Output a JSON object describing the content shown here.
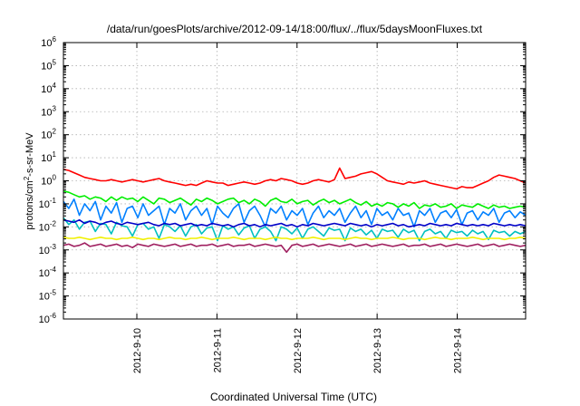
{
  "chart_data": {
    "type": "line",
    "title": "/data/run/goesPlots/archive/2012-09-14/18:00/flux/../flux/5daysMoonFluxes.txt",
    "xlabel": "Coordinated Universal Time (UTC)",
    "ylabel_parts": [
      "protons/cm",
      "2",
      "-s-sr-MeV"
    ],
    "y_scale": "log",
    "ylim_exp": [
      -6,
      6
    ],
    "y_tick_exponents": [
      -6,
      -5,
      -4,
      -3,
      -2,
      -1,
      0,
      1,
      2,
      3,
      4,
      5,
      6
    ],
    "y_tick_base": "10",
    "x_ticks": [
      "2012-9-10",
      "2012-9-11",
      "2012-9-12",
      "2012-9-13",
      "2012-9-14"
    ],
    "xlim": [
      "2012-09-09 02:00",
      "2012-09-14 20:30"
    ],
    "grid": true,
    "series": [
      {
        "color": "#ff0000",
        "log_values": [
          0.5,
          0.45,
          0.35,
          0.25,
          0.15,
          0.1,
          0.05,
          0.0,
          0.0,
          0.05,
          0.0,
          -0.05,
          0.0,
          0.05,
          0.0,
          -0.05,
          0.0,
          0.05,
          0.1,
          0.0,
          -0.05,
          -0.1,
          -0.15,
          -0.2,
          -0.15,
          -0.2,
          -0.1,
          0.0,
          -0.05,
          -0.1,
          -0.1,
          -0.2,
          -0.15,
          -0.1,
          -0.05,
          -0.1,
          -0.15,
          -0.1,
          0.0,
          0.05,
          0.0,
          0.1,
          0.05,
          0.0,
          -0.1,
          -0.15,
          -0.1,
          0.0,
          0.05,
          0.0,
          -0.05,
          0.05,
          0.55,
          0.1,
          0.15,
          0.2,
          0.3,
          0.35,
          0.4,
          0.3,
          0.15,
          0.0,
          -0.05,
          -0.1,
          -0.15,
          -0.05,
          -0.1,
          -0.05,
          0.0,
          -0.1,
          -0.15,
          -0.2,
          -0.25,
          -0.3,
          -0.35,
          -0.25,
          -0.3,
          -0.3,
          -0.2,
          -0.1,
          0.0,
          0.15,
          0.25,
          0.2,
          0.15,
          0.1,
          0.0,
          -0.1
        ]
      },
      {
        "color": "#00ee00",
        "log_values": [
          -0.45,
          -0.5,
          -0.6,
          -0.7,
          -0.65,
          -0.8,
          -0.7,
          -0.75,
          -0.9,
          -0.7,
          -0.85,
          -0.7,
          -0.8,
          -0.75,
          -0.9,
          -0.7,
          -0.85,
          -1.0,
          -0.75,
          -0.8,
          -0.95,
          -0.85,
          -0.75,
          -0.9,
          -1.05,
          -0.8,
          -0.9,
          -0.75,
          -0.85,
          -1.0,
          -0.9,
          -0.8,
          -0.75,
          -0.95,
          -0.85,
          -1.0,
          -0.8,
          -0.9,
          -1.1,
          -0.85,
          -0.75,
          -0.9,
          -0.95,
          -0.8,
          -1.0,
          -0.9,
          -0.85,
          -1.05,
          -0.9,
          -0.8,
          -0.95,
          -0.85,
          -1.0,
          -0.9,
          -0.8,
          -0.95,
          -1.05,
          -0.9,
          -1.1,
          -1.0,
          -1.1,
          -0.95,
          -1.0,
          -1.15,
          -1.0,
          -1.1,
          -0.95,
          -1.2,
          -1.05,
          -1.1,
          -1.0,
          -1.15,
          -1.1,
          -1.0,
          -1.2,
          -1.05,
          -1.1,
          -1.15,
          -1.0,
          -1.1,
          -1.2,
          -1.05,
          -1.15,
          -1.1,
          -1.2,
          -1.15,
          -1.1,
          -1.15
        ]
      },
      {
        "color": "#0080ff",
        "log_values": [
          -0.9,
          -1.2,
          -0.8,
          -1.5,
          -1.0,
          -1.3,
          -0.9,
          -1.7,
          -1.1,
          -1.4,
          -0.95,
          -1.8,
          -1.2,
          -1.1,
          -1.6,
          -1.0,
          -1.5,
          -1.3,
          -1.1,
          -1.9,
          -1.2,
          -1.4,
          -1.0,
          -1.7,
          -1.3,
          -1.1,
          -1.5,
          -1.2,
          -1.9,
          -1.1,
          -1.4,
          -1.6,
          -1.2,
          -1.0,
          -1.8,
          -1.3,
          -1.1,
          -1.5,
          -2.0,
          -1.2,
          -1.4,
          -1.1,
          -1.7,
          -1.3,
          -1.5,
          -1.2,
          -1.9,
          -1.4,
          -1.1,
          -1.6,
          -1.3,
          -1.5,
          -1.2,
          -1.8,
          -1.4,
          -1.1,
          -1.6,
          -1.3,
          -1.9,
          -1.2,
          -1.5,
          -1.35,
          -1.7,
          -1.2,
          -1.5,
          -1.4,
          -2.0,
          -1.3,
          -1.5,
          -1.2,
          -1.8,
          -1.4,
          -1.3,
          -1.6,
          -1.25,
          -1.9,
          -1.4,
          -1.3,
          -1.7,
          -1.35,
          -1.5,
          -1.2,
          -1.8,
          -1.4,
          -1.3,
          -1.6,
          -1.35,
          -1.5
        ]
      },
      {
        "color": "#00c0c0",
        "log_values": [
          -1.6,
          -1.9,
          -1.7,
          -2.1,
          -1.8,
          -1.75,
          -2.2,
          -1.85,
          -1.9,
          -2.3,
          -1.8,
          -1.95,
          -2.0,
          -2.4,
          -1.9,
          -1.85,
          -2.1,
          -2.0,
          -2.5,
          -1.9,
          -2.0,
          -2.2,
          -1.95,
          -2.4,
          -2.0,
          -1.9,
          -2.3,
          -2.05,
          -2.0,
          -2.6,
          -1.95,
          -2.1,
          -2.0,
          -2.35,
          -2.05,
          -1.95,
          -2.5,
          -2.1,
          -2.0,
          -2.2,
          -2.6,
          -2.0,
          -2.1,
          -2.3,
          -2.05,
          -2.5,
          -2.1,
          -2.0,
          -2.2,
          -2.4,
          -2.05,
          -2.15,
          -2.1,
          -2.6,
          -2.05,
          -2.2,
          -2.1,
          -2.35,
          -2.15,
          -2.5,
          -2.1,
          -2.2,
          -2.15,
          -2.45,
          -2.1,
          -2.25,
          -2.15,
          -2.6,
          -2.2,
          -2.1,
          -2.3,
          -2.2,
          -2.5,
          -2.15,
          -2.25,
          -2.2,
          -2.4,
          -2.15,
          -2.3,
          -2.2,
          -2.55,
          -2.15,
          -2.25,
          -2.2,
          -2.4,
          -2.2,
          -2.3,
          -2.2
        ]
      },
      {
        "color": "#0000c8",
        "log_values": [
          -1.7,
          -1.75,
          -1.8,
          -1.7,
          -1.85,
          -1.75,
          -1.8,
          -1.9,
          -1.8,
          -1.75,
          -1.85,
          -1.9,
          -1.8,
          -1.85,
          -1.9,
          -1.85,
          -1.8,
          -1.9,
          -1.95,
          -1.85,
          -1.9,
          -1.85,
          -1.95,
          -1.9,
          -1.85,
          -1.95,
          -1.9,
          -1.95,
          -1.85,
          -1.9,
          -1.95,
          -1.9,
          -2.0,
          -1.9,
          -1.85,
          -1.95,
          -1.9,
          -2.0,
          -1.9,
          -1.95,
          -1.9,
          -1.85,
          -1.95,
          -1.9,
          -2.0,
          -1.9,
          -1.95,
          -1.85,
          -1.9,
          -1.95,
          -1.9,
          -1.85,
          -1.9,
          -1.95,
          -1.85,
          -1.9,
          -1.95,
          -1.9,
          -2.0,
          -1.9,
          -1.95,
          -1.9,
          -1.85,
          -1.95,
          -1.9,
          -2.0,
          -1.95,
          -1.9,
          -1.95,
          -1.85,
          -1.9,
          -1.95,
          -1.9,
          -1.95,
          -1.85,
          -1.9,
          -1.95,
          -1.9,
          -1.95,
          -1.9,
          -1.95,
          -1.85,
          -1.9,
          -1.95,
          -1.9,
          -1.95,
          -1.9,
          -1.95
        ]
      },
      {
        "color": "#f0f000",
        "log_values": [
          -2.45,
          -2.5,
          -2.5,
          -2.45,
          -2.5,
          -2.55,
          -2.5,
          -2.45,
          -2.5,
          -2.5,
          -2.55,
          -2.5,
          -2.5,
          -2.45,
          -2.5,
          -2.55,
          -2.5,
          -2.5,
          -2.55,
          -2.5,
          -2.45,
          -2.5,
          -2.5,
          -2.55,
          -2.5,
          -2.5,
          -2.45,
          -2.5,
          -2.55,
          -2.5,
          -2.5,
          -2.5,
          -2.45,
          -2.5,
          -2.55,
          -2.5,
          -2.5,
          -2.5,
          -2.55,
          -2.5,
          -2.45,
          -2.5,
          -2.5,
          -2.55,
          -2.5,
          -2.5,
          -2.5,
          -2.45,
          -2.5,
          -2.55,
          -2.5,
          -2.5,
          -2.5,
          -2.55,
          -2.5,
          -2.45,
          -2.5,
          -2.5,
          -2.55,
          -2.5,
          -2.5,
          -2.5,
          -2.45,
          -2.5,
          -2.55,
          -2.5,
          -2.5,
          -2.5,
          -2.55,
          -2.5,
          -2.45,
          -2.5,
          -2.5,
          -2.55,
          -2.5,
          -2.5,
          -2.5,
          -2.45,
          -2.5,
          -2.55,
          -2.5,
          -2.5,
          -2.5,
          -2.55,
          -2.5,
          -2.5,
          -2.45,
          -2.5
        ]
      },
      {
        "color": "#a02060",
        "log_values": [
          -2.8,
          -2.75,
          -2.85,
          -2.8,
          -2.7,
          -2.85,
          -2.8,
          -2.75,
          -2.85,
          -2.8,
          -2.75,
          -2.85,
          -2.8,
          -2.9,
          -2.75,
          -2.8,
          -2.85,
          -2.75,
          -2.8,
          -2.85,
          -2.8,
          -2.75,
          -2.85,
          -2.8,
          -2.75,
          -2.85,
          -2.8,
          -2.8,
          -2.75,
          -2.85,
          -2.8,
          -2.75,
          -2.85,
          -2.8,
          -2.8,
          -2.75,
          -2.85,
          -2.8,
          -2.75,
          -2.8,
          -2.85,
          -2.8,
          -3.1,
          -2.8,
          -2.75,
          -2.85,
          -2.8,
          -2.75,
          -2.85,
          -2.8,
          -2.75,
          -2.8,
          -2.85,
          -2.8,
          -2.75,
          -2.85,
          -2.8,
          -2.75,
          -2.85,
          -2.8,
          -2.75,
          -2.8,
          -2.85,
          -2.8,
          -2.75,
          -2.85,
          -2.8,
          -2.8,
          -2.75,
          -2.85,
          -2.8,
          -2.75,
          -2.85,
          -2.8,
          -2.75,
          -2.8,
          -2.85,
          -2.8,
          -2.75,
          -2.85,
          -2.8,
          -2.75,
          -2.85,
          -2.8,
          -2.75,
          -2.8,
          -2.85,
          -2.8
        ]
      }
    ]
  }
}
